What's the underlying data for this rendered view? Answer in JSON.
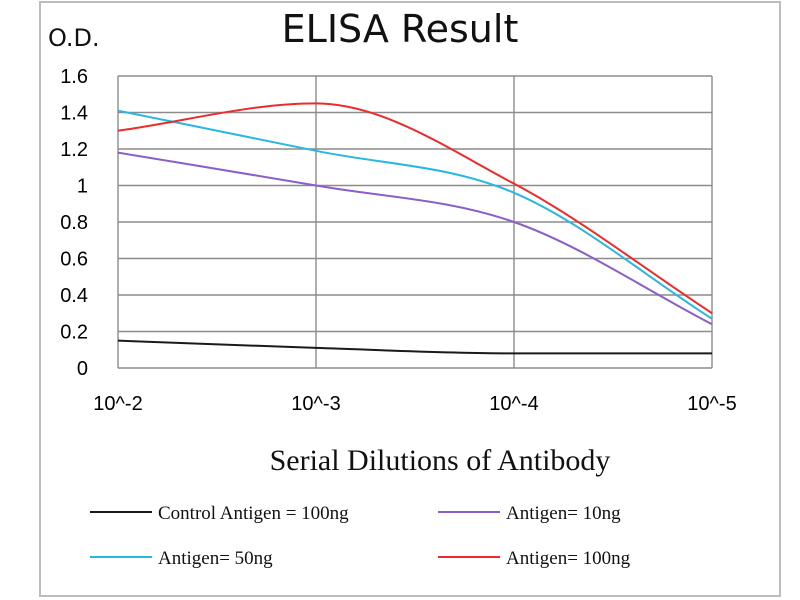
{
  "chart_data": {
    "type": "line",
    "title": "ELISA Result",
    "ylabel": "O.D.",
    "xlabel": "Serial Dilutions  of Antibody",
    "categories": [
      "10^-2",
      "10^-3",
      "10^-4",
      "10^-5"
    ],
    "yticks": [
      "0",
      "0.2",
      "0.4",
      "0.6",
      "0.8",
      "1",
      "1.2",
      "1.4",
      "1.6"
    ],
    "ylim": [
      0,
      1.6
    ],
    "grid": true,
    "legend_position": "bottom",
    "series": [
      {
        "name": "Control Antigen = 100ng",
        "color": "#1a1a1a",
        "values": [
          0.15,
          0.11,
          0.08,
          0.08
        ]
      },
      {
        "name": "Antigen= 10ng",
        "color": "#8a5fc8",
        "values": [
          1.18,
          1.0,
          0.8,
          0.24
        ]
      },
      {
        "name": "Antigen= 50ng",
        "color": "#29b7e0",
        "values": [
          1.41,
          1.19,
          0.96,
          0.27
        ]
      },
      {
        "name": "Antigen= 100ng",
        "color": "#ee2b2b",
        "values": [
          1.3,
          1.45,
          1.01,
          0.3
        ]
      }
    ]
  }
}
